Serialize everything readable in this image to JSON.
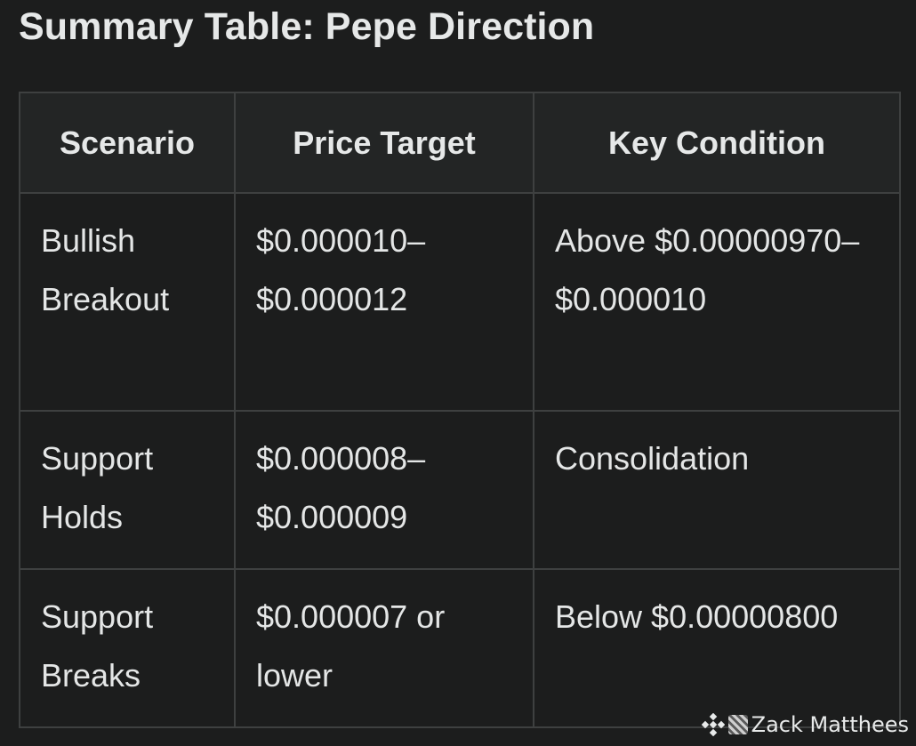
{
  "title": "Summary Table: Pepe Direction",
  "table": {
    "headers": [
      "Scenario",
      "Price Target",
      "Key Condition"
    ],
    "rows": [
      [
        "Bullish Breakout",
        "$0.000010–$0.000012",
        "Above $0.00000970–$0.000010"
      ],
      [
        "Support Holds",
        "$0.000008–$0.000009",
        "Consolidation"
      ],
      [
        "Support Breaks",
        "$0.000007 or lower",
        "Below $0.00000800"
      ]
    ]
  },
  "watermark": {
    "icon": "exchange-diamond-logo-icon",
    "author": "Zack Matthees"
  },
  "colors": {
    "background": "#1c1d1d",
    "header_background": "#232525",
    "border": "#3e4040",
    "text": "#e4e6e6"
  }
}
